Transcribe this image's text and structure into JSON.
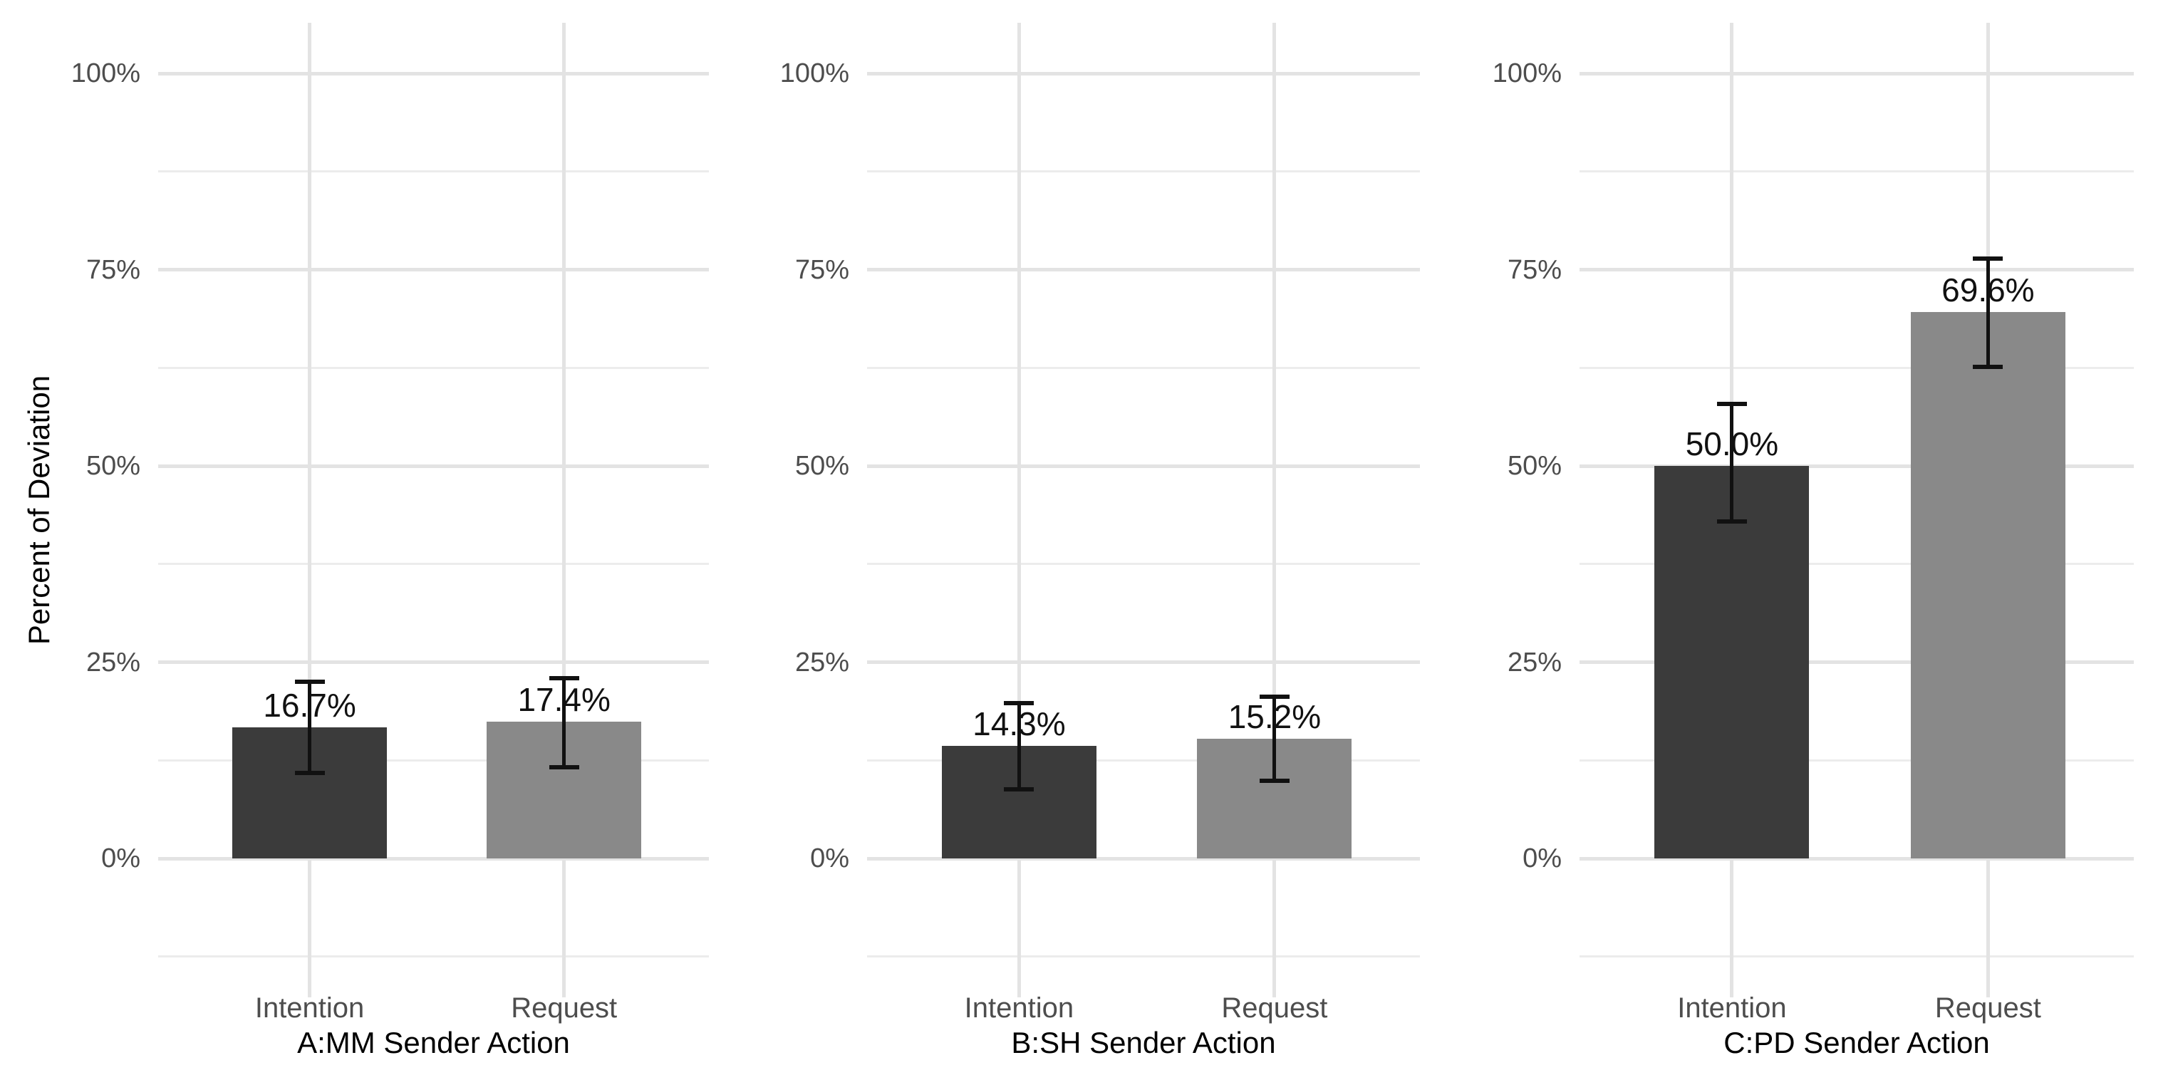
{
  "figure": {
    "background": "#ffffff"
  },
  "chart_data": {
    "type": "bar",
    "title": "",
    "ylabel": "Percent of Deviation",
    "xlabel": "",
    "categories": [
      "Intention",
      "Request"
    ],
    "y_ticks": [
      "0%",
      "25%",
      "50%",
      "75%",
      "100%"
    ],
    "y_tick_values": [
      0,
      25,
      50,
      75,
      100
    ],
    "ylim": [
      0,
      100
    ],
    "grid": "major and minor horizontal gridlines, vertical gridlines at category centers",
    "legend": "none",
    "error_bars": true,
    "panels": [
      {
        "xlabel": "A:MM Sender Action",
        "bars": [
          {
            "category": "Intention",
            "value": 16.7,
            "label": "16.7%",
            "err_lo": 10.9,
            "err_hi": 22.5
          },
          {
            "category": "Request",
            "value": 17.4,
            "label": "17.4%",
            "err_lo": 11.6,
            "err_hi": 23.0
          }
        ]
      },
      {
        "xlabel": "B:SH Sender Action",
        "bars": [
          {
            "category": "Intention",
            "value": 14.3,
            "label": "14.3%",
            "err_lo": 8.8,
            "err_hi": 19.8
          },
          {
            "category": "Request",
            "value": 15.2,
            "label": "15.2%",
            "err_lo": 9.9,
            "err_hi": 20.6
          }
        ]
      },
      {
        "xlabel": "C:PD Sender Action",
        "bars": [
          {
            "category": "Intention",
            "value": 50.0,
            "label": "50.0%",
            "err_lo": 42.9,
            "err_hi": 57.9
          },
          {
            "category": "Request",
            "value": 69.6,
            "label": "69.6%",
            "err_lo": 62.6,
            "err_hi": 76.4
          }
        ]
      }
    ],
    "colors": {
      "intention_bar": "#3b3b3b",
      "request_bar": "#898989",
      "major_gridline": "#e3e3e3",
      "minor_gridline": "#ececec",
      "tick_text": "#4d4d4d",
      "axis_text": "#000000",
      "error_bar": "#111111"
    }
  }
}
